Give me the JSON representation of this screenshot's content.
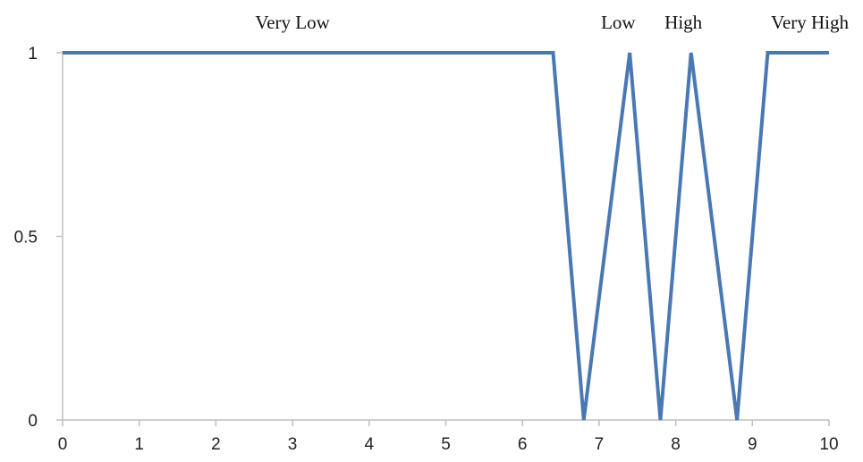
{
  "chart_data": {
    "type": "line",
    "title": "",
    "xlabel": "",
    "ylabel": "",
    "xlim": [
      0,
      10
    ],
    "ylim": [
      0,
      1
    ],
    "x_ticks": [
      "0",
      "1",
      "2",
      "3",
      "4",
      "5",
      "6",
      "7",
      "8",
      "9",
      "10"
    ],
    "y_ticks": [
      "0",
      "0.5",
      "1"
    ],
    "grid": false,
    "line_color": "#4a78b5",
    "axis_color": "#bfbfbf",
    "series": [
      {
        "x": [
          0,
          6.4,
          6.8,
          7.4,
          7.8,
          8.2,
          8.8,
          9.2,
          10
        ],
        "y": [
          1,
          1,
          0,
          1,
          0,
          1,
          0,
          1,
          1
        ]
      }
    ],
    "annotations": [
      {
        "text": "Very Low",
        "x": 3.0
      },
      {
        "text": "Low",
        "x": 7.25
      },
      {
        "text": "High",
        "x": 8.1
      },
      {
        "text": "Very High",
        "x": 9.75
      }
    ]
  }
}
